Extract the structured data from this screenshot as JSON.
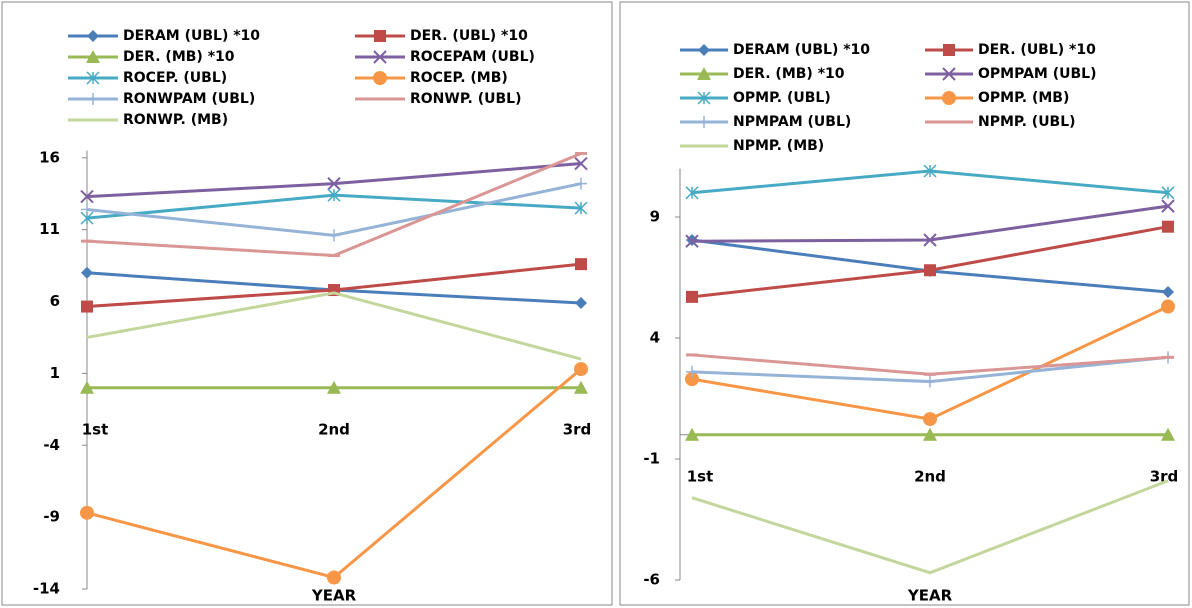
{
  "chart_data": [
    {
      "type": "line",
      "x_label": "YEAR",
      "categories": [
        "1st",
        "2nd",
        "3rd"
      ],
      "ylim": [
        -14,
        16.5
      ],
      "yticks": [
        -14,
        -9,
        -4,
        1,
        6,
        11,
        16
      ],
      "series": [
        {
          "name": "DERAM (UBL) *10",
          "color": "#4a7ebb",
          "marker": "diamond",
          "values": [
            8.0,
            6.8,
            5.9
          ]
        },
        {
          "name": "DER. (UBL) *10",
          "color": "#be4b48",
          "marker": "square",
          "values": [
            5.65,
            6.8,
            8.6
          ]
        },
        {
          "name": "DER. (MB) *10",
          "color": "#98b954",
          "marker": "triangle",
          "values": [
            0,
            0,
            0
          ]
        },
        {
          "name": "ROCEPAM (UBL)",
          "color": "#7d60a0",
          "marker": "x",
          "values": [
            13.3,
            14.2,
            15.6
          ]
        },
        {
          "name": "ROCEP. (UBL)",
          "color": "#46aac5",
          "marker": "star",
          "values": [
            11.8,
            13.4,
            12.5
          ]
        },
        {
          "name": "ROCEP. (MB)",
          "color": "#f79646",
          "marker": "circle",
          "values": [
            -8.7,
            -13.2,
            1.3
          ]
        },
        {
          "name": "RONWPAM (UBL)",
          "color": "#95b3d7",
          "marker": "plus",
          "values": [
            12.4,
            10.6,
            14.2
          ]
        },
        {
          "name": "RONWP. (UBL)",
          "color": "#da9694",
          "marker": "dash",
          "values": [
            10.2,
            9.2,
            16.3
          ]
        },
        {
          "name": "RONWP. (MB)",
          "color": "#c3d69b",
          "marker": "none",
          "values": [
            3.5,
            6.6,
            2.0
          ]
        }
      ]
    },
    {
      "type": "line",
      "x_label": "YEAR",
      "categories": [
        "1st",
        "2nd",
        "3rd"
      ],
      "ylim": [
        -6,
        11
      ],
      "yticks": [
        -6,
        -1,
        4,
        9
      ],
      "series": [
        {
          "name": "DERAM (UBL) *10",
          "color": "#4a7ebb",
          "marker": "diamond",
          "values": [
            8.05,
            6.77,
            5.9
          ]
        },
        {
          "name": "DER. (UBL) *10",
          "color": "#be4b48",
          "marker": "square",
          "values": [
            5.7,
            6.8,
            8.6
          ]
        },
        {
          "name": "DER. (MB) *10",
          "color": "#98b954",
          "marker": "triangle",
          "values": [
            0,
            0,
            0
          ]
        },
        {
          "name": "OPMPAM (UBL)",
          "color": "#7d60a0",
          "marker": "x",
          "values": [
            8.0,
            8.05,
            9.45
          ]
        },
        {
          "name": "OPMP. (UBL)",
          "color": "#46aac5",
          "marker": "star",
          "values": [
            10.0,
            10.9,
            10.0
          ]
        },
        {
          "name": "OPMP. (MB)",
          "color": "#f79646",
          "marker": "circle",
          "values": [
            2.3,
            0.65,
            5.3
          ]
        },
        {
          "name": "NPMPAM (UBL)",
          "color": "#95b3d7",
          "marker": "plus",
          "values": [
            2.6,
            2.2,
            3.2
          ]
        },
        {
          "name": "NPMP. (UBL)",
          "color": "#da9694",
          "marker": "dash",
          "values": [
            3.3,
            2.5,
            3.2
          ]
        },
        {
          "name": "NPMP. (MB)",
          "color": "#c3d69b",
          "marker": "none",
          "values": [
            -2.6,
            -5.7,
            -1.9
          ]
        }
      ]
    }
  ]
}
